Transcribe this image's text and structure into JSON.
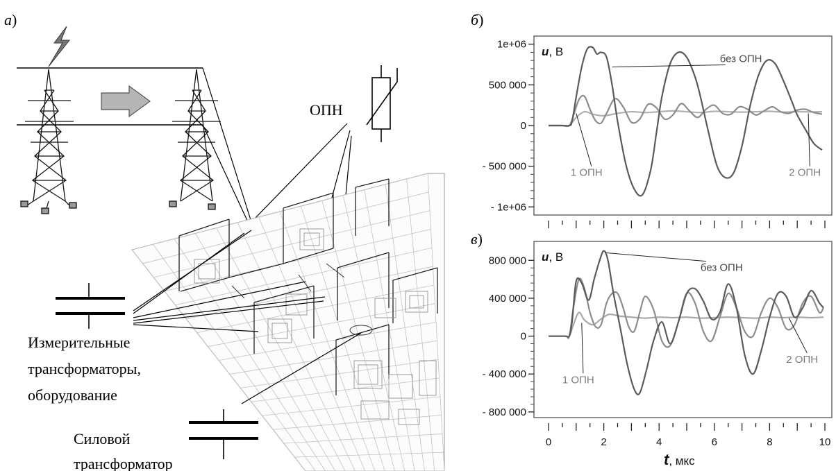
{
  "panel_a": {
    "letter": "а",
    "arrester_label": "ОПН",
    "measuring_label_line1": "Измерительные",
    "measuring_label_line2": "трансформаторы,",
    "measuring_label_line3": "оборудование",
    "power_label_line1": "Силовой",
    "power_label_line2": "трансформатор"
  },
  "panel_b": {
    "letter": "б",
    "y_unit": "u, В",
    "y_unit_var": "u",
    "y_unit_rest": ", В"
  },
  "panel_c": {
    "letter": "в",
    "y_unit_var": "u",
    "y_unit_rest": ", В"
  },
  "x_axis": {
    "var": "t",
    "rest": ", мкс"
  },
  "chart_data": [
    {
      "type": "line",
      "panel": "б",
      "ylabel": "u, В",
      "xlim": [
        0,
        10
      ],
      "ylim": [
        -1100000,
        1100000
      ],
      "y_ticks": [
        1000000,
        500000,
        0,
        -500000,
        -1000000
      ],
      "y_tick_labels": [
        "1e+06",
        "500 000",
        "0",
        "- 500 000",
        "- 1e+06"
      ],
      "grid": false,
      "series": [
        {
          "name": "без ОПН",
          "color": "#5a5a5a",
          "x": [
            0,
            0.5,
            0.75,
            0.85,
            1.0,
            1.2,
            1.4,
            1.6,
            1.75,
            1.9,
            2.1,
            2.3,
            2.5,
            2.8,
            3.1,
            3.4,
            3.7,
            3.9,
            4.1,
            4.4,
            4.7,
            5.0,
            5.3,
            5.5,
            5.8,
            6.1,
            6.4,
            6.7,
            7.0,
            7.3,
            7.6,
            7.9,
            8.2,
            8.5,
            8.8,
            9.0,
            9.3,
            9.6,
            9.9
          ],
          "y": [
            0,
            0,
            0,
            50000,
            350000,
            720000,
            940000,
            960000,
            880000,
            900000,
            840000,
            500000,
            50000,
            -480000,
            -780000,
            -850000,
            -540000,
            -100000,
            350000,
            760000,
            900000,
            840000,
            600000,
            350000,
            -100000,
            -500000,
            -640000,
            -580000,
            -250000,
            250000,
            620000,
            800000,
            760000,
            550000,
            300000,
            130000,
            -50000,
            -220000,
            -300000
          ]
        },
        {
          "name": "1 ОПН",
          "color": "#8c8c8c",
          "x": [
            0,
            0.5,
            0.75,
            0.9,
            1.1,
            1.3,
            1.5,
            1.7,
            1.9,
            2.1,
            2.4,
            2.7,
            3.0,
            3.3,
            3.6,
            3.9,
            4.2,
            4.5,
            4.8,
            5.1,
            5.4,
            5.7,
            6.0,
            6.3,
            6.6,
            6.9,
            7.2,
            7.5,
            7.8,
            8.1,
            8.4,
            8.7,
            9.0,
            9.3,
            9.6,
            9.9
          ],
          "y": [
            0,
            0,
            0,
            120000,
            320000,
            360000,
            200000,
            60000,
            30000,
            150000,
            330000,
            230000,
            40000,
            80000,
            260000,
            220000,
            80000,
            130000,
            270000,
            180000,
            100000,
            200000,
            250000,
            150000,
            140000,
            230000,
            200000,
            130000,
            180000,
            230000,
            170000,
            150000,
            190000,
            200000,
            160000,
            140000
          ]
        },
        {
          "name": "2 ОПН",
          "color": "#b0b0b0",
          "x": [
            0,
            0.5,
            0.75,
            1.0,
            1.3,
            1.6,
            2.0,
            2.5,
            3.0,
            3.5,
            4.0,
            4.5,
            5.0,
            5.5,
            6.0,
            6.5,
            7.0,
            7.5,
            8.0,
            8.5,
            9.0,
            9.5,
            9.9
          ],
          "y": [
            0,
            0,
            0,
            100000,
            170000,
            140000,
            120000,
            150000,
            170000,
            160000,
            170000,
            180000,
            170000,
            160000,
            175000,
            170000,
            165000,
            170000,
            175000,
            165000,
            170000,
            168000,
            170000
          ]
        }
      ]
    },
    {
      "type": "line",
      "panel": "в",
      "ylabel": "u, В",
      "xlabel": "t, мкс",
      "xlim": [
        0,
        10
      ],
      "ylim": [
        -860000,
        1000000
      ],
      "x_ticks": [
        0,
        2,
        4,
        6,
        8,
        10
      ],
      "x_tick_labels": [
        "0",
        "2",
        "4",
        "6",
        "8",
        "10"
      ],
      "y_ticks": [
        800000,
        400000,
        0,
        -400000,
        -800000
      ],
      "y_tick_labels": [
        "800 000",
        "400 000",
        "0",
        "- 400 000",
        "- 800 000"
      ],
      "grid": false,
      "series": [
        {
          "name": "без ОПН",
          "color": "#5a5a5a",
          "x": [
            0,
            0.6,
            0.75,
            0.85,
            1.0,
            1.2,
            1.45,
            1.65,
            1.85,
            2.0,
            2.15,
            2.35,
            2.6,
            2.85,
            3.1,
            3.3,
            3.55,
            3.8,
            4.1,
            4.4,
            4.7,
            5.0,
            5.3,
            5.6,
            5.9,
            6.2,
            6.5,
            6.8,
            7.1,
            7.4,
            7.7,
            8.0,
            8.3,
            8.6,
            8.9,
            9.2,
            9.5,
            9.8,
            9.95
          ],
          "y": [
            0,
            0,
            0,
            150000,
            580000,
            560000,
            380000,
            600000,
            800000,
            900000,
            800000,
            450000,
            80000,
            -300000,
            -560000,
            -600000,
            -350000,
            -50000,
            150000,
            -80000,
            150000,
            450000,
            500000,
            370000,
            180000,
            250000,
            550000,
            300000,
            -200000,
            -400000,
            -150000,
            200000,
            450000,
            420000,
            200000,
            300000,
            480000,
            350000,
            300000
          ]
        },
        {
          "name": "1 ОПН",
          "color": "#8c8c8c",
          "x": [
            0,
            0.6,
            0.75,
            0.9,
            1.1,
            1.3,
            1.5,
            1.7,
            1.9,
            2.1,
            2.3,
            2.5,
            2.7,
            2.9,
            3.1,
            3.3,
            3.5,
            3.8,
            4.1,
            4.4,
            4.7,
            5.0,
            5.3,
            5.6,
            5.9,
            6.2,
            6.5,
            6.8,
            7.1,
            7.4,
            7.7,
            8.0,
            8.3,
            8.6,
            8.9,
            9.2,
            9.5,
            9.8,
            9.95
          ],
          "y": [
            0,
            0,
            0,
            300000,
            600000,
            500000,
            250000,
            100000,
            120000,
            350000,
            450000,
            450000,
            300000,
            100000,
            50000,
            250000,
            420000,
            280000,
            -50000,
            -100000,
            150000,
            450000,
            350000,
            50000,
            -50000,
            200000,
            450000,
            300000,
            50000,
            0,
            250000,
            400000,
            300000,
            80000,
            120000,
            350000,
            420000,
            250000,
            300000
          ]
        },
        {
          "name": "2 ОПН",
          "color": "#a8a8a8",
          "x": [
            0,
            0.6,
            0.75,
            0.9,
            1.1,
            1.3,
            1.6,
            1.9,
            2.2,
            2.6,
            3.0,
            3.5,
            4.0,
            4.5,
            5.0,
            5.5,
            6.0,
            6.5,
            7.0,
            7.5,
            8.0,
            8.5,
            9.0,
            9.5,
            9.95
          ],
          "y": [
            0,
            0,
            0,
            120000,
            250000,
            170000,
            120000,
            180000,
            230000,
            210000,
            200000,
            190000,
            200000,
            195000,
            200000,
            190000,
            195000,
            200000,
            195000,
            190000,
            200000,
            195000,
            200000,
            195000,
            200000
          ]
        }
      ]
    }
  ]
}
